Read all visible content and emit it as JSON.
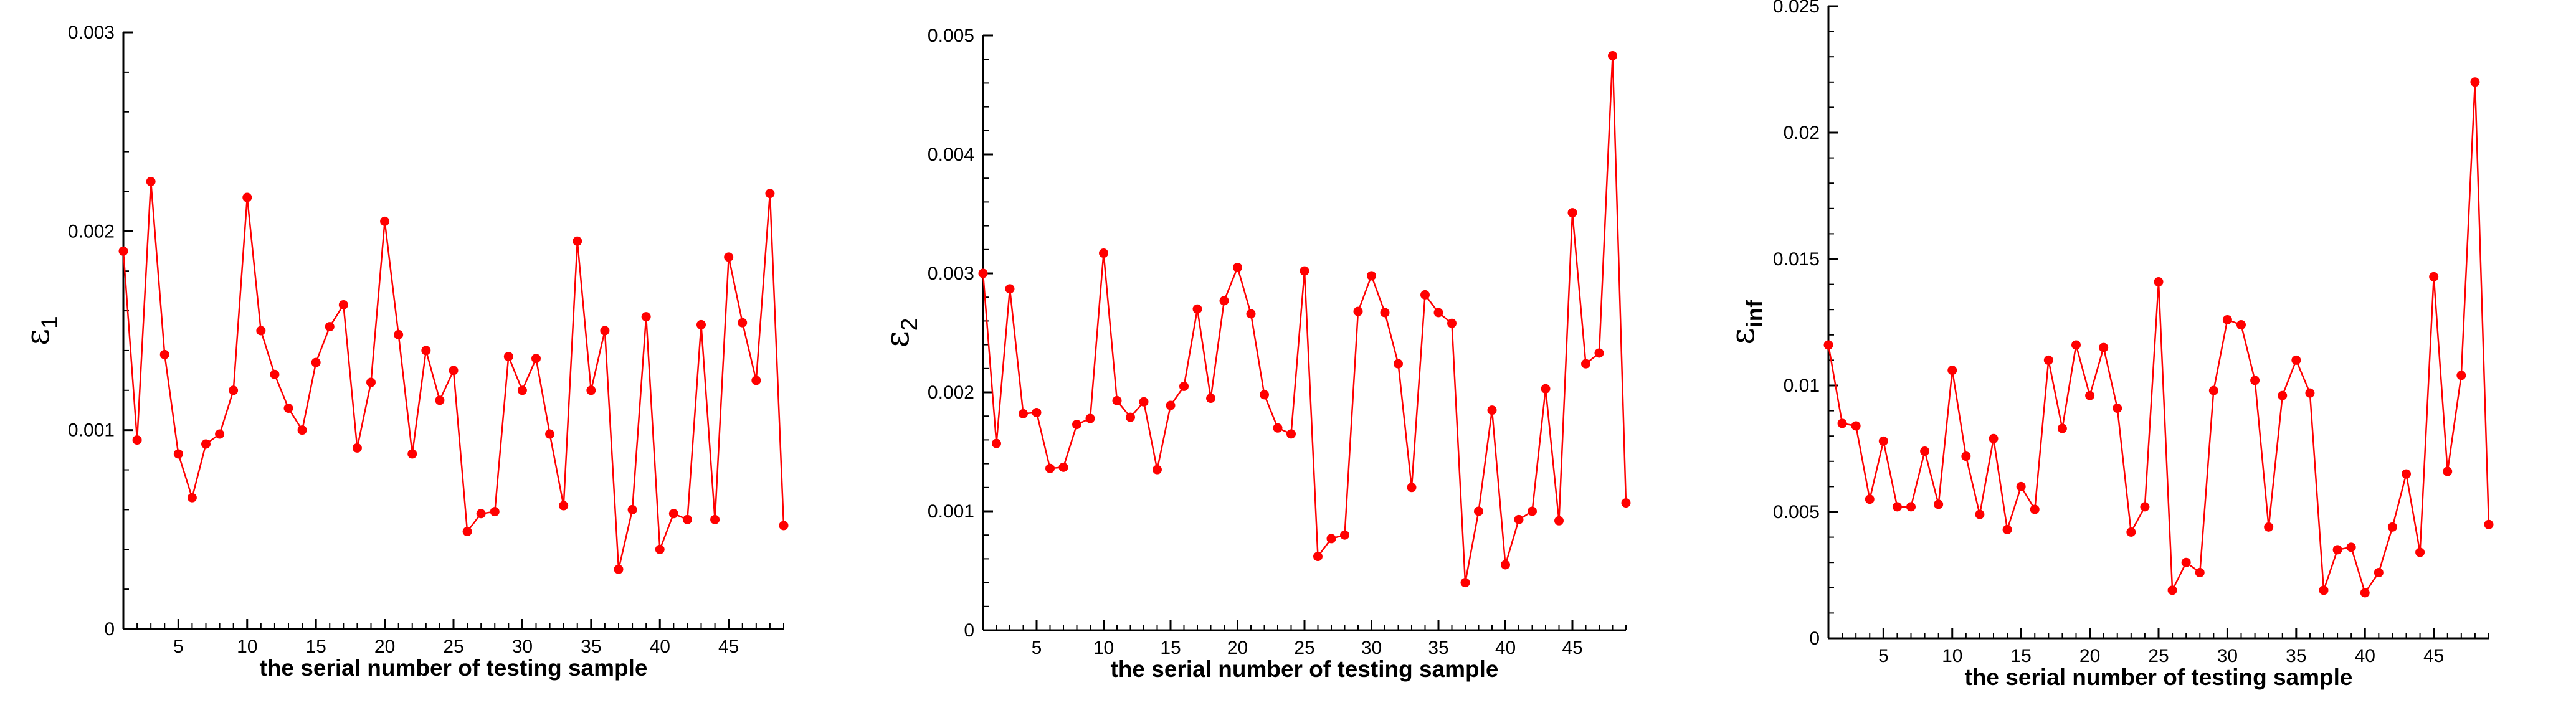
{
  "chart_data": [
    {
      "type": "line",
      "ylabel_symbol": "ε",
      "ylabel_sub": "1",
      "xlabel": "the serial number of testing sample",
      "xlim": [
        1,
        49
      ],
      "ylim": [
        0,
        0.003
      ],
      "xticks": [
        5,
        10,
        15,
        20,
        25,
        30,
        35,
        40,
        45
      ],
      "yticks": [
        0,
        0.001,
        0.002,
        0.003
      ],
      "ytick_labels": [
        "0",
        "0.001",
        "0.002",
        "0.003"
      ],
      "color": "#ff0000",
      "x": [
        1,
        2,
        3,
        4,
        5,
        6,
        7,
        8,
        9,
        10,
        11,
        12,
        13,
        14,
        15,
        16,
        17,
        18,
        19,
        20,
        21,
        22,
        23,
        24,
        25,
        26,
        27,
        28,
        29,
        30,
        31,
        32,
        33,
        34,
        35,
        36,
        37,
        38,
        39,
        40,
        41,
        42,
        43,
        44,
        45,
        46,
        47,
        48,
        49
      ],
      "y": [
        0.0019,
        0.00095,
        0.00225,
        0.00138,
        0.00088,
        0.00066,
        0.00093,
        0.00098,
        0.0012,
        0.00217,
        0.0015,
        0.00128,
        0.00111,
        0.001,
        0.00134,
        0.00152,
        0.00163,
        0.00091,
        0.00124,
        0.00205,
        0.00148,
        0.00088,
        0.0014,
        0.00115,
        0.0013,
        0.00049,
        0.00058,
        0.00059,
        0.00137,
        0.0012,
        0.00136,
        0.00098,
        0.00062,
        0.00195,
        0.0012,
        0.0015,
        0.0003,
        0.0006,
        0.00157,
        0.0004,
        0.00058,
        0.00055,
        0.00153,
        0.00055,
        0.00187,
        0.00154,
        0.00125,
        0.00219,
        0.00052
      ]
    },
    {
      "type": "line",
      "ylabel_symbol": "ε",
      "ylabel_sub": "2",
      "xlabel": "the serial number of testing sample",
      "xlim": [
        1,
        49
      ],
      "ylim": [
        0,
        0.005
      ],
      "xticks": [
        5,
        10,
        15,
        20,
        25,
        30,
        35,
        40,
        45
      ],
      "yticks": [
        0,
        0.001,
        0.002,
        0.003,
        0.004,
        0.005
      ],
      "ytick_labels": [
        "0",
        "0.001",
        "0.002",
        "0.003",
        "0.004",
        "0.005"
      ],
      "color": "#ff0000",
      "x": [
        1,
        2,
        3,
        4,
        5,
        6,
        7,
        8,
        9,
        10,
        11,
        12,
        13,
        14,
        15,
        16,
        17,
        18,
        19,
        20,
        21,
        22,
        23,
        24,
        25,
        26,
        27,
        28,
        29,
        30,
        31,
        32,
        33,
        34,
        35,
        36,
        37,
        38,
        39,
        40,
        41,
        42,
        43,
        44,
        45,
        46,
        47,
        48,
        49
      ],
      "y": [
        0.003,
        0.00157,
        0.00287,
        0.00182,
        0.00183,
        0.00136,
        0.00137,
        0.00173,
        0.00178,
        0.00317,
        0.00193,
        0.00179,
        0.00192,
        0.00135,
        0.00189,
        0.00205,
        0.0027,
        0.00195,
        0.00277,
        0.00305,
        0.00266,
        0.00198,
        0.0017,
        0.00165,
        0.00302,
        0.00062,
        0.00077,
        0.0008,
        0.00268,
        0.00298,
        0.00267,
        0.00224,
        0.0012,
        0.00282,
        0.00267,
        0.00258,
        0.0004,
        0.001,
        0.00185,
        0.00055,
        0.00093,
        0.001,
        0.00203,
        0.00092,
        0.00351,
        0.00224,
        0.00233,
        0.00483,
        0.00107
      ]
    },
    {
      "type": "line",
      "ylabel_symbol": "ε",
      "ylabel_sub": "inf",
      "xlabel": "the serial number of testing sample",
      "xlim": [
        1,
        49
      ],
      "ylim": [
        0,
        0.025
      ],
      "xticks": [
        5,
        10,
        15,
        20,
        25,
        30,
        35,
        40,
        45
      ],
      "yticks": [
        0,
        0.005,
        0.01,
        0.015,
        0.02,
        0.025
      ],
      "ytick_labels": [
        "0",
        "0.005",
        "0.01",
        "0.015",
        "0.02",
        "0.025"
      ],
      "color": "#ff0000",
      "x": [
        1,
        2,
        3,
        4,
        5,
        6,
        7,
        8,
        9,
        10,
        11,
        12,
        13,
        14,
        15,
        16,
        17,
        18,
        19,
        20,
        21,
        22,
        23,
        24,
        25,
        26,
        27,
        28,
        29,
        30,
        31,
        32,
        33,
        34,
        35,
        36,
        37,
        38,
        39,
        40,
        41,
        42,
        43,
        44,
        45,
        46,
        47,
        48,
        49
      ],
      "y": [
        0.0116,
        0.0085,
        0.0084,
        0.0055,
        0.0078,
        0.0052,
        0.0052,
        0.0074,
        0.0053,
        0.0106,
        0.0072,
        0.0049,
        0.0079,
        0.0043,
        0.006,
        0.0051,
        0.011,
        0.0083,
        0.0116,
        0.0096,
        0.0115,
        0.0091,
        0.0042,
        0.0052,
        0.0141,
        0.0019,
        0.003,
        0.0026,
        0.0098,
        0.0126,
        0.0124,
        0.0102,
        0.0044,
        0.0096,
        0.011,
        0.0097,
        0.0019,
        0.0035,
        0.0036,
        0.0018,
        0.0026,
        0.0044,
        0.0065,
        0.0034,
        0.0143,
        0.0066,
        0.0104,
        0.022,
        0.0045
      ]
    }
  ]
}
